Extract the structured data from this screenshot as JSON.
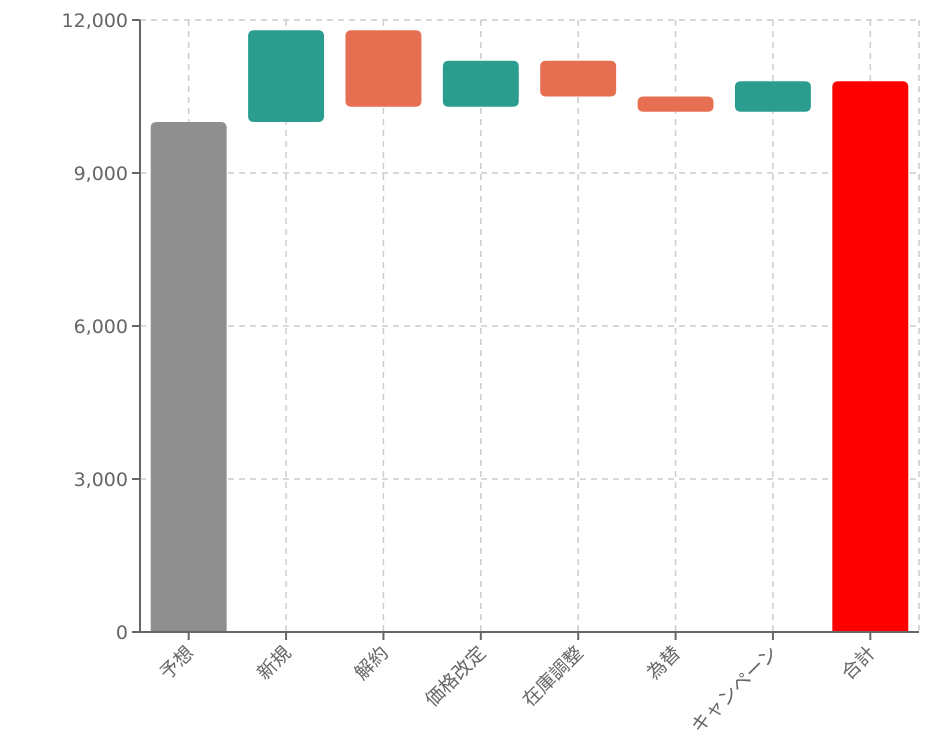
{
  "chart_data": {
    "type": "waterfall",
    "title": "",
    "xlabel": "",
    "ylabel": "",
    "ylim": [
      0,
      12000
    ],
    "yticks": [
      0,
      3000,
      6000,
      9000,
      12000
    ],
    "ytick_labels": [
      "0",
      "3,000",
      "6,000",
      "9,000",
      "12,000"
    ],
    "grid": true,
    "categories": [
      "予想",
      "新規",
      "解約",
      "価格改定",
      "在庫調整",
      "為替",
      "キャンペーン",
      "合計"
    ],
    "bars": [
      {
        "label": "予想",
        "kind": "base",
        "start": 0,
        "end": 10000,
        "value": 10000
      },
      {
        "label": "新規",
        "kind": "increase",
        "start": 10000,
        "end": 11800,
        "value": 1800
      },
      {
        "label": "解約",
        "kind": "decrease",
        "start": 11800,
        "end": 10300,
        "value": -1500
      },
      {
        "label": "価格改定",
        "kind": "increase",
        "start": 10300,
        "end": 11200,
        "value": 900
      },
      {
        "label": "在庫調整",
        "kind": "decrease",
        "start": 11200,
        "end": 10500,
        "value": -700
      },
      {
        "label": "為替",
        "kind": "decrease",
        "start": 10500,
        "end": 10200,
        "value": -300
      },
      {
        "label": "キャンペーン",
        "kind": "increase",
        "start": 10200,
        "end": 10800,
        "value": 600
      },
      {
        "label": "合計",
        "kind": "total",
        "start": 0,
        "end": 10800,
        "value": 10800
      }
    ],
    "colors": {
      "base": "#8f8f8f",
      "increase": "#2a9d8f",
      "decrease": "#e76f51",
      "total": "#ff0000"
    }
  }
}
